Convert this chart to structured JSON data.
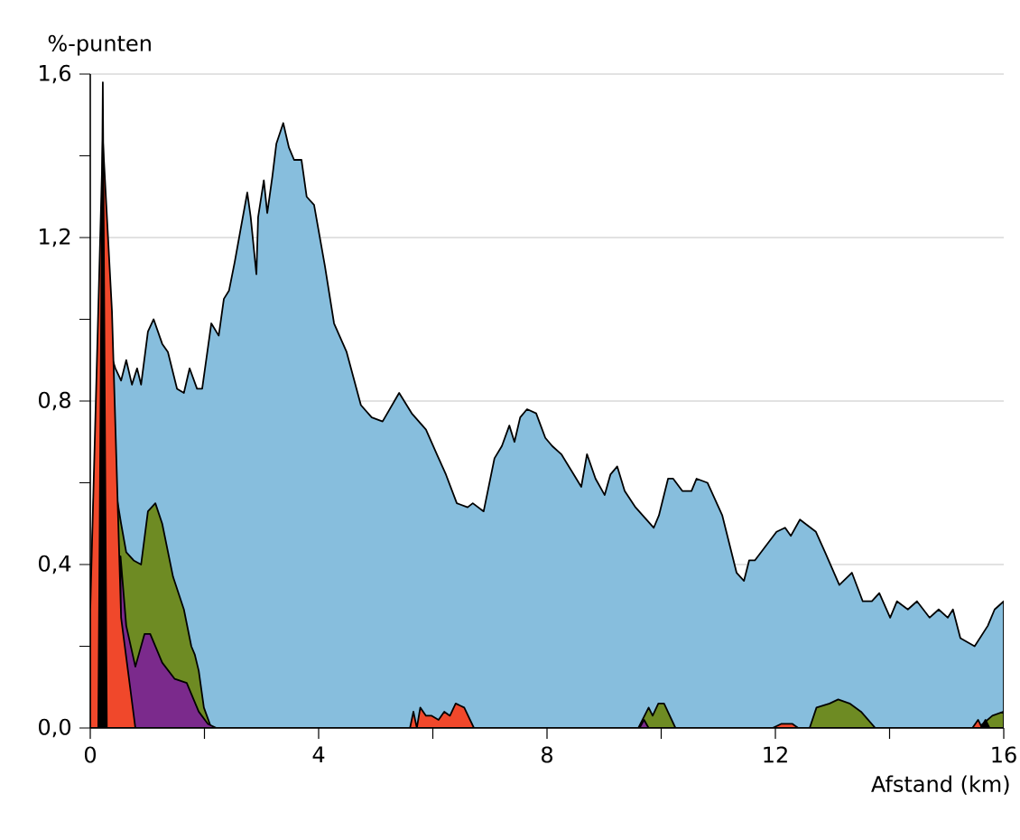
{
  "chart_data": {
    "type": "area",
    "ylabel": "%-punten",
    "xlabel": "Afstand (km)",
    "xlim": [
      0,
      16
    ],
    "ylim": [
      0,
      1.6
    ],
    "xticks": [
      0,
      {
        "value": 2,
        "label": null
      },
      4,
      {
        "value": 6,
        "label": null
      },
      8,
      {
        "value": 10,
        "label": null
      },
      12,
      {
        "value": 14,
        "label": null
      },
      16
    ],
    "yticks": [
      {
        "value": 0,
        "label": "0,0"
      },
      {
        "value": 0.2,
        "label": null
      },
      {
        "value": 0.4,
        "label": "0,4"
      },
      {
        "value": 0.6,
        "label": null
      },
      {
        "value": 0.8,
        "label": "0,8"
      },
      {
        "value": 1.0,
        "label": null
      },
      {
        "value": 1.2,
        "label": "1,2"
      },
      {
        "value": 1.4,
        "label": null
      },
      {
        "value": 1.6,
        "label": "1,6"
      }
    ],
    "grid": "y",
    "series": [
      {
        "color": "#87bedd",
        "x": [
          0,
          0.16,
          0.32,
          0.44,
          0.54,
          0.63,
          0.73,
          0.82,
          0.89,
          1.01,
          1.11,
          1.26,
          1.36,
          1.52,
          1.64,
          1.74,
          1.87,
          1.96,
          2.12,
          2.25,
          2.34,
          2.43,
          2.53,
          2.62,
          2.75,
          2.81,
          2.91,
          2.94,
          3.04,
          3.1,
          3.19,
          3.26,
          3.38,
          3.48,
          3.57,
          3.7,
          3.79,
          3.92,
          4.11,
          4.27,
          4.49,
          4.74,
          4.93,
          5.12,
          5.41,
          5.63,
          5.88,
          6.07,
          6.23,
          6.42,
          6.61,
          6.7,
          6.89,
          7.08,
          7.21,
          7.34,
          7.43,
          7.53,
          7.65,
          7.81,
          7.97,
          8.09,
          8.25,
          8.47,
          8.6,
          8.7,
          8.85,
          9.01,
          9.11,
          9.23,
          9.36,
          9.55,
          9.74,
          9.87,
          9.96,
          10.12,
          10.21,
          10.37,
          10.53,
          10.62,
          10.81,
          11.07,
          11.32,
          11.45,
          11.54,
          11.64,
          12.02,
          12.17,
          12.27,
          12.43,
          12.71,
          12.87,
          13.12,
          13.34,
          13.53,
          13.69,
          13.82,
          14.01,
          14.13,
          14.32,
          14.48,
          14.7,
          14.86,
          15.02,
          15.11,
          15.24,
          15.49,
          15.72,
          15.84,
          16
        ],
        "values": [
          0.29,
          1.0,
          null,
          0.88,
          0.85,
          0.9,
          0.84,
          0.88,
          0.84,
          0.97,
          1.0,
          0.94,
          0.92,
          0.83,
          0.82,
          0.88,
          0.83,
          0.83,
          0.99,
          0.96,
          1.05,
          1.07,
          1.14,
          1.21,
          1.31,
          1.25,
          1.11,
          1.25,
          1.34,
          1.26,
          1.35,
          1.43,
          1.48,
          1.42,
          1.39,
          1.39,
          1.3,
          1.28,
          1.13,
          0.99,
          0.92,
          0.79,
          0.76,
          0.75,
          0.82,
          0.77,
          0.73,
          0.67,
          0.62,
          0.55,
          0.54,
          0.55,
          0.53,
          0.66,
          0.69,
          0.74,
          0.7,
          0.76,
          0.78,
          0.77,
          0.71,
          0.69,
          0.67,
          0.62,
          0.59,
          0.67,
          0.61,
          0.57,
          0.62,
          0.64,
          0.58,
          0.54,
          0.51,
          0.49,
          0.52,
          0.61,
          0.61,
          0.58,
          0.58,
          0.61,
          0.6,
          0.52,
          0.38,
          0.36,
          0.41,
          0.41,
          0.48,
          0.49,
          0.47,
          0.51,
          0.48,
          0.43,
          0.35,
          0.38,
          0.31,
          0.31,
          0.33,
          0.27,
          0.31,
          0.29,
          0.31,
          0.27,
          0.29,
          0.27,
          0.29,
          0.22,
          0.2,
          0.25,
          0.29,
          0.31
        ]
      },
      {
        "color": "#6e8b23",
        "x": [
          0.47,
          0.54,
          0.63,
          0.76,
          0.89,
          1.01,
          1.14,
          1.26,
          1.45,
          1.64,
          1.77,
          1.83,
          1.9,
          1.99,
          2.12,
          9.6,
          9.78,
          9.85,
          9.95,
          10.05,
          10.25,
          12.6,
          12.72,
          12.95,
          13.1,
          13.3,
          13.5,
          13.75,
          15.55,
          15.8,
          16
        ],
        "values": [
          0.56,
          0.5,
          0.43,
          0.41,
          0.4,
          0.53,
          0.55,
          0.5,
          0.37,
          0.29,
          0.2,
          0.18,
          0.14,
          0.05,
          0,
          0,
          0.05,
          0.03,
          0.06,
          0.06,
          0,
          0,
          0.05,
          0.06,
          0.07,
          0.06,
          0.04,
          0,
          0,
          0.03,
          0.04
        ]
      },
      {
        "color": "#7b2a8c",
        "x": [
          0.53,
          0.63,
          0.79,
          0.95,
          1.05,
          1.26,
          1.48,
          1.69,
          1.9,
          2.06,
          2.21,
          9.62,
          9.7,
          9.78
        ],
        "values": [
          0.42,
          0.25,
          0.15,
          0.23,
          0.23,
          0.16,
          0.12,
          0.11,
          0.04,
          0.01,
          0,
          0,
          0.02,
          0
        ]
      },
      {
        "color": "#f0482b",
        "x": [
          0,
          0.22,
          0.38,
          0.54,
          0.79,
          5.6,
          5.66,
          5.72,
          5.78,
          5.88,
          5.98,
          6.1,
          6.2,
          6.3,
          6.4,
          6.55,
          6.72,
          11.95,
          12.1,
          12.3,
          12.4,
          15.45,
          15.55,
          15.62
        ],
        "values": [
          0.29,
          1.44,
          1.02,
          0.27,
          0,
          0,
          0.04,
          0,
          0.05,
          0.03,
          0.03,
          0.02,
          0.04,
          0.03,
          0.06,
          0.05,
          0,
          0,
          0.01,
          0.01,
          0,
          0,
          0.02,
          0
        ]
      },
      {
        "color": "#000000",
        "x": [
          0.14,
          0.22,
          0.29,
          15.6,
          15.68,
          15.75
        ],
        "values": [
          0,
          1.58,
          0,
          0,
          0.02,
          0
        ]
      }
    ]
  }
}
